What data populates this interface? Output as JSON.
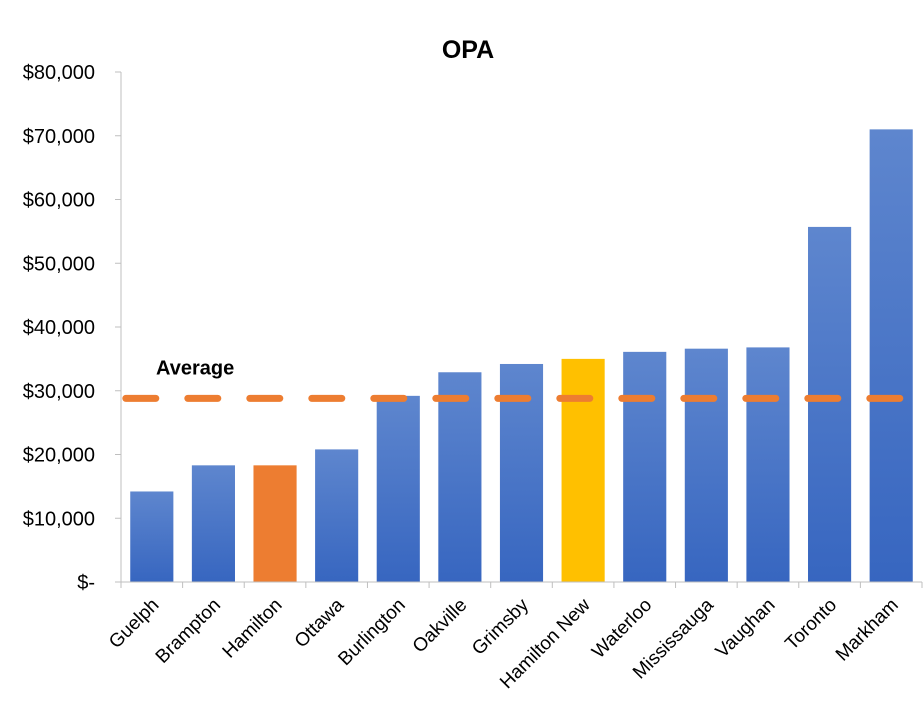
{
  "chart_data": {
    "type": "bar",
    "title": "OPA",
    "xlabel": "",
    "ylabel": "",
    "ylim": [
      0,
      80000
    ],
    "y_ticks": [
      {
        "value": 0,
        "label": "$-"
      },
      {
        "value": 10000,
        "label": "$10,000"
      },
      {
        "value": 20000,
        "label": "$20,000"
      },
      {
        "value": 30000,
        "label": "$30,000"
      },
      {
        "value": 40000,
        "label": "$40,000"
      },
      {
        "value": 50000,
        "label": "$50,000"
      },
      {
        "value": 60000,
        "label": "$60,000"
      },
      {
        "value": 70000,
        "label": "$70,000"
      },
      {
        "value": 80000,
        "label": "$80,000"
      }
    ],
    "categories": [
      "Guelph",
      "Brampton",
      "Hamilton",
      "Ottawa",
      "Burlington",
      "Oakville",
      "Grimsby",
      "Hamilton New",
      "Waterloo",
      "Mississauga",
      "Vaughan",
      "Toronto",
      "Markham"
    ],
    "values": [
      14200,
      18300,
      18300,
      20800,
      29200,
      32900,
      34200,
      35000,
      36100,
      36600,
      36800,
      55700,
      71000
    ],
    "bar_colors": [
      "#4472C4",
      "#4472C4",
      "#ED7D31",
      "#4472C4",
      "#4472C4",
      "#4472C4",
      "#4472C4",
      "#FFC000",
      "#4472C4",
      "#4472C4",
      "#4472C4",
      "#4472C4",
      "#4472C4"
    ],
    "average": {
      "label": "Average",
      "value": 28800,
      "color": "#ED7D31"
    },
    "grid": false,
    "legend": "none"
  }
}
